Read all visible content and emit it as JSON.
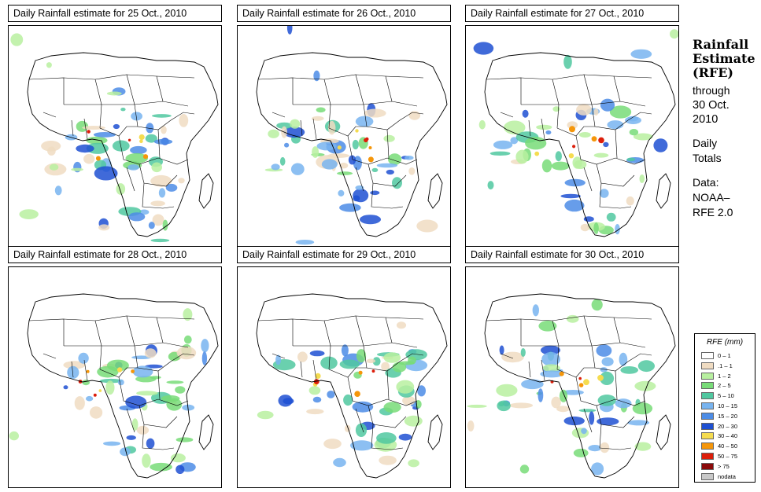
{
  "panels": [
    {
      "title": "Daily Rainfall estimate for  25 Oct., 2010"
    },
    {
      "title": "Daily Rainfall estimate for  26 Oct., 2010"
    },
    {
      "title": "Daily Rainfall estimate for  27 Oct., 2010"
    },
    {
      "title": "Daily Rainfall estimate for  28 Oct., 2010"
    },
    {
      "title": "Daily Rainfall estimate for  29 Oct., 2010"
    },
    {
      "title": "Daily Rainfall estimate for  30 Oct., 2010"
    }
  ],
  "sidebar": {
    "title_line1": "Rainfall",
    "title_line2": "Estimate",
    "title_line3": "(RFE)",
    "through": "through",
    "date_line1": "30 Oct.",
    "date_line2": "2010",
    "daily_line1": "Daily",
    "daily_line2": "Totals",
    "data_label": "Data:",
    "data_line1": "NOAA–",
    "data_line2": "RFE 2.0"
  },
  "legend": {
    "title": "RFE (mm)",
    "items": [
      {
        "label": "0 – 1",
        "color": "#ffffff"
      },
      {
        "label": ".1 – 1",
        "color": "#f0dcc2"
      },
      {
        "label": "1 – 2",
        "color": "#b8f0a0"
      },
      {
        "label": "2 – 5",
        "color": "#78dc78"
      },
      {
        "label": "5 – 10",
        "color": "#50c8a0"
      },
      {
        "label": "10 – 15",
        "color": "#78b4f0"
      },
      {
        "label": "15 – 20",
        "color": "#4c8ce6"
      },
      {
        "label": "20 – 30",
        "color": "#1e50d2"
      },
      {
        "label": "30 – 40",
        "color": "#f5dc50"
      },
      {
        "label": "40 – 50",
        "color": "#f5960a"
      },
      {
        "label": "50 – 75",
        "color": "#dc1e0a"
      },
      {
        "label": "> 75",
        "color": "#8c0a0a"
      },
      {
        "label": "nodata",
        "color": "#c8c8c8"
      }
    ]
  }
}
